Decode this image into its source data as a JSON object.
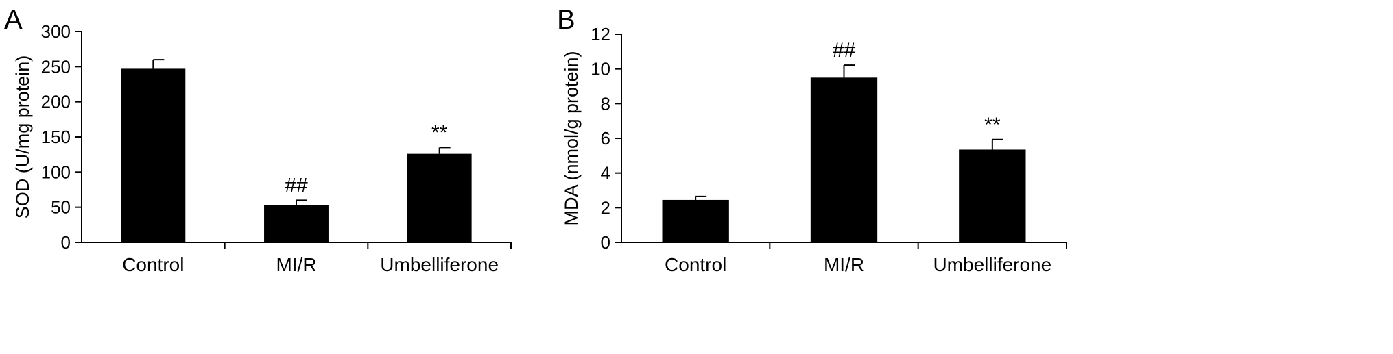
{
  "chart_data": [
    {
      "type": "bar",
      "panel": "A",
      "categories": [
        "Control",
        "MI/R",
        "Umbelliferone"
      ],
      "values": [
        247,
        53,
        126
      ],
      "errors": [
        13,
        7,
        9
      ],
      "annotations": [
        "",
        "##",
        "**"
      ],
      "title": "",
      "xlabel": "",
      "ylabel": "SOD (U/mg protein)",
      "ylim": [
        0,
        300
      ],
      "yticks": [
        0,
        50,
        100,
        150,
        200,
        250,
        300
      ],
      "grid": false,
      "bar_color": "#000000"
    },
    {
      "type": "bar",
      "panel": "B",
      "categories": [
        "Control",
        "MI/R",
        "Umbelliferone"
      ],
      "values": [
        2.45,
        9.5,
        5.35
      ],
      "errors": [
        0.2,
        0.72,
        0.58
      ],
      "annotations": [
        "",
        "##",
        "**"
      ],
      "title": "",
      "xlabel": "",
      "ylabel": "MDA (nmol/g protein)",
      "ylim": [
        0,
        12
      ],
      "yticks": [
        0,
        2,
        4,
        6,
        8,
        10,
        12
      ],
      "grid": false,
      "bar_color": "#000000"
    }
  ]
}
